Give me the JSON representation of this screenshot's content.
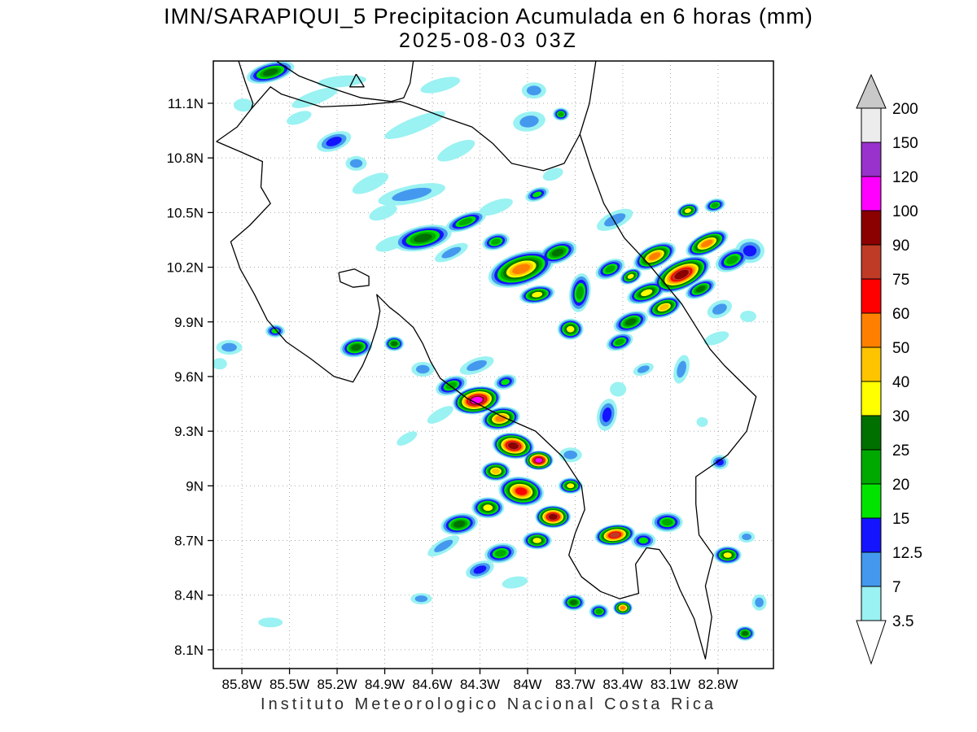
{
  "chart_data": {
    "type": "heatmap",
    "title": "IMN/SARAPIQUI_5 Precipitacion Acumulada en 6 horas (mm)",
    "subtitle": "2025-08-03 03Z",
    "footer": "Instituto Meteorologico Nacional Costa Rica",
    "units": "mm",
    "grid": true,
    "legend_position": "right",
    "lon_range": [
      -85.98,
      -82.451
    ],
    "lat_range": [
      7.997,
      11.332
    ],
    "x_ticks": [
      {
        "label": "85.8W",
        "lon": -85.8
      },
      {
        "label": "85.5W",
        "lon": -85.5
      },
      {
        "label": "85.2W",
        "lon": -85.2
      },
      {
        "label": "84.9W",
        "lon": -84.9
      },
      {
        "label": "84.6W",
        "lon": -84.6
      },
      {
        "label": "84.3W",
        "lon": -84.3
      },
      {
        "label": "84W",
        "lon": -84.0
      },
      {
        "label": "83.7W",
        "lon": -83.7
      },
      {
        "label": "83.4W",
        "lon": -83.4
      },
      {
        "label": "83.1W",
        "lon": -83.1
      },
      {
        "label": "82.8W",
        "lon": -82.8
      }
    ],
    "y_ticks": [
      {
        "label": "11.1N",
        "lat": 11.1
      },
      {
        "label": "10.8N",
        "lat": 10.8
      },
      {
        "label": "10.5N",
        "lat": 10.5
      },
      {
        "label": "10.2N",
        "lat": 10.2
      },
      {
        "label": "9.9N",
        "lat": 9.9
      },
      {
        "label": "9.6N",
        "lat": 9.6
      },
      {
        "label": "9.3N",
        "lat": 9.3
      },
      {
        "label": "9N",
        "lat": 9.0
      },
      {
        "label": "8.7N",
        "lat": 8.7
      },
      {
        "label": "8.4N",
        "lat": 8.4
      },
      {
        "label": "8.1N",
        "lat": 8.1
      }
    ],
    "colorbar": {
      "levels": [
        3.5,
        7,
        12.5,
        15,
        20,
        25,
        30,
        40,
        50,
        60,
        75,
        90,
        100,
        120,
        150,
        200
      ],
      "band_colors": [
        "#9af2f2",
        "#4499ee",
        "#1414ff",
        "#00e400",
        "#00a900",
        "#007000",
        "#ffff00",
        "#ffc400",
        "#ff8000",
        "#ff0000",
        "#bf3b26",
        "#8b0000",
        "#ff00ff",
        "#9932cd",
        "#ececec"
      ],
      "over_color": "#c9c9c9",
      "under_color": "#ffffff"
    },
    "cells": [
      [
        -85.62,
        11.27,
        28,
        30,
        12,
        -15
      ],
      [
        -85.34,
        11.13,
        3.5,
        30,
        8,
        -20
      ],
      [
        -85.79,
        11.09,
        3.5,
        12,
        8,
        0
      ],
      [
        -85.17,
        11.22,
        3.5,
        30,
        7,
        -5
      ],
      [
        -84.55,
        11.2,
        3.5,
        25,
        8,
        -15
      ],
      [
        -83.96,
        11.17,
        7,
        15,
        10,
        0
      ],
      [
        -83.99,
        11.0,
        8,
        20,
        12,
        -10
      ],
      [
        -83.79,
        11.04,
        20,
        10,
        8,
        0
      ],
      [
        -85.44,
        11.02,
        3.5,
        16,
        7,
        -20
      ],
      [
        -84.71,
        10.98,
        3.5,
        40,
        9,
        -22
      ],
      [
        -84.45,
        10.84,
        3.5,
        25,
        9,
        -25
      ],
      [
        -85.22,
        10.89,
        14,
        22,
        11,
        -20
      ],
      [
        -85.08,
        10.77,
        8,
        13,
        9,
        0
      ],
      [
        -84.99,
        10.66,
        3.5,
        24,
        9,
        -25
      ],
      [
        -84.73,
        10.6,
        8,
        42,
        11,
        -12
      ],
      [
        -84.91,
        10.5,
        3.5,
        18,
        8,
        -20
      ],
      [
        -84.2,
        10.53,
        3.5,
        22,
        8,
        -20
      ],
      [
        -83.94,
        10.6,
        15,
        15,
        8,
        -20
      ],
      [
        -83.84,
        10.71,
        3.5,
        13,
        7,
        -20
      ],
      [
        -84.66,
        10.36,
        28,
        36,
        15,
        -12
      ],
      [
        -84.86,
        10.33,
        3.5,
        20,
        8,
        -20
      ],
      [
        -84.48,
        10.28,
        7,
        22,
        8,
        -25
      ],
      [
        -84.39,
        10.45,
        20,
        26,
        10,
        -20
      ],
      [
        -84.2,
        10.34,
        20,
        17,
        10,
        -15
      ],
      [
        -84.04,
        10.19,
        55,
        42,
        20,
        -18
      ],
      [
        -83.81,
        10.28,
        25,
        24,
        13,
        -20
      ],
      [
        -83.94,
        10.05,
        35,
        22,
        11,
        -10
      ],
      [
        -83.67,
        10.06,
        20,
        13,
        24,
        8
      ],
      [
        -83.73,
        9.86,
        35,
        16,
        13,
        0
      ],
      [
        -83.45,
        10.46,
        7,
        24,
        10,
        -25
      ],
      [
        -82.99,
        10.51,
        35,
        14,
        9,
        -15
      ],
      [
        -82.82,
        10.54,
        20,
        13,
        8,
        -15
      ],
      [
        -83.48,
        10.19,
        20,
        19,
        11,
        -25
      ],
      [
        -83.35,
        10.15,
        35,
        14,
        9,
        -25
      ],
      [
        -83.2,
        10.26,
        50,
        28,
        14,
        -25
      ],
      [
        -83.03,
        10.16,
        95,
        38,
        18,
        -25
      ],
      [
        -82.87,
        10.33,
        55,
        28,
        13,
        -25
      ],
      [
        -82.71,
        10.24,
        20,
        22,
        13,
        -25
      ],
      [
        -82.6,
        10.29,
        14,
        18,
        15,
        0
      ],
      [
        -83.25,
        10.06,
        35,
        25,
        12,
        -20
      ],
      [
        -83.14,
        9.98,
        45,
        22,
        12,
        -20
      ],
      [
        -83.35,
        9.9,
        25,
        22,
        12,
        -20
      ],
      [
        -83.42,
        9.79,
        20,
        17,
        10,
        -20
      ],
      [
        -82.91,
        10.08,
        25,
        20,
        10,
        -25
      ],
      [
        -82.79,
        9.97,
        8,
        16,
        10,
        -25
      ],
      [
        -82.81,
        9.81,
        3.5,
        16,
        7,
        -20
      ],
      [
        -82.61,
        9.93,
        3.5,
        10,
        7,
        0
      ],
      [
        -85.88,
        9.76,
        7,
        16,
        9,
        0
      ],
      [
        -85.94,
        9.67,
        3.5,
        9,
        7,
        0
      ],
      [
        -85.59,
        9.85,
        15,
        12,
        8,
        0
      ],
      [
        -85.08,
        9.76,
        25,
        20,
        12,
        -10
      ],
      [
        -84.84,
        9.78,
        25,
        12,
        9,
        0
      ],
      [
        -84.66,
        9.64,
        7,
        14,
        9,
        0
      ],
      [
        -84.32,
        9.66,
        7,
        22,
        9,
        -20
      ],
      [
        -84.14,
        9.57,
        15,
        14,
        9,
        -15
      ],
      [
        -84.48,
        9.55,
        20,
        20,
        11,
        -20
      ],
      [
        -84.32,
        9.47,
        110,
        30,
        17,
        -10
      ],
      [
        -84.17,
        9.37,
        55,
        24,
        14,
        -10
      ],
      [
        -84.09,
        9.22,
        95,
        26,
        16,
        8
      ],
      [
        -83.93,
        9.14,
        105,
        18,
        12,
        0
      ],
      [
        -84.2,
        9.08,
        45,
        18,
        12,
        0
      ],
      [
        -84.04,
        8.97,
        65,
        28,
        18,
        8
      ],
      [
        -84.25,
        8.88,
        35,
        20,
        13,
        0
      ],
      [
        -84.43,
        8.79,
        25,
        23,
        13,
        -10
      ],
      [
        -83.84,
        8.83,
        95,
        22,
        14,
        0
      ],
      [
        -83.73,
        9.0,
        35,
        15,
        10,
        0
      ],
      [
        -83.94,
        8.7,
        35,
        18,
        11,
        0
      ],
      [
        -84.17,
        8.63,
        20,
        20,
        12,
        -10
      ],
      [
        -84.3,
        8.54,
        14,
        18,
        10,
        -20
      ],
      [
        -84.53,
        8.67,
        7,
        22,
        8,
        -30
      ],
      [
        -84.08,
        8.47,
        3.5,
        16,
        7,
        -10
      ],
      [
        -83.45,
        8.73,
        80,
        25,
        13,
        -8
      ],
      [
        -83.27,
        8.7,
        15,
        15,
        10,
        0
      ],
      [
        -83.12,
        8.8,
        20,
        19,
        12,
        0
      ],
      [
        -82.74,
        8.62,
        35,
        17,
        11,
        0
      ],
      [
        -82.62,
        8.72,
        7,
        10,
        7,
        0
      ],
      [
        -83.71,
        8.36,
        25,
        14,
        10,
        0
      ],
      [
        -83.55,
        8.31,
        20,
        12,
        9,
        0
      ],
      [
        -83.4,
        8.33,
        55,
        12,
        9,
        0
      ],
      [
        -84.67,
        8.38,
        7,
        13,
        7,
        0
      ],
      [
        -85.62,
        8.25,
        3.5,
        15,
        6,
        0
      ],
      [
        -82.63,
        8.19,
        25,
        12,
        9,
        0
      ],
      [
        -82.54,
        8.36,
        7,
        9,
        10,
        0
      ],
      [
        -83.5,
        9.39,
        13,
        12,
        20,
        12
      ],
      [
        -83.43,
        9.53,
        3.5,
        10,
        9,
        0
      ],
      [
        -83.27,
        9.64,
        7,
        13,
        7,
        -20
      ],
      [
        -83.03,
        9.64,
        7,
        9,
        18,
        15
      ],
      [
        -82.79,
        9.13,
        13,
        11,
        9,
        0
      ],
      [
        -82.9,
        9.35,
        3.5,
        7,
        6,
        0
      ],
      [
        -84.55,
        9.39,
        3.5,
        18,
        7,
        -30
      ],
      [
        -84.76,
        9.26,
        3.5,
        14,
        6,
        -30
      ],
      [
        -83.73,
        9.17,
        7,
        14,
        9,
        0
      ]
    ],
    "coastlines": [
      [
        [
          -85.74,
          11.07
        ],
        [
          -85.83,
          10.97
        ],
        [
          -85.96,
          10.89
        ],
        [
          -85.8,
          10.83
        ],
        [
          -85.67,
          10.78
        ],
        [
          -85.68,
          10.64
        ],
        [
          -85.62,
          10.55
        ],
        [
          -85.75,
          10.43
        ],
        [
          -85.87,
          10.34
        ],
        [
          -85.81,
          10.19
        ],
        [
          -85.72,
          10.05
        ],
        [
          -85.64,
          9.91
        ],
        [
          -85.52,
          9.79
        ],
        [
          -85.37,
          9.7
        ],
        [
          -85.22,
          9.6
        ],
        [
          -85.1,
          9.57
        ],
        [
          -85.04,
          9.66
        ],
        [
          -84.99,
          9.76
        ],
        [
          -84.95,
          9.87
        ],
        [
          -84.93,
          9.96
        ],
        [
          -84.95,
          10.05
        ],
        [
          -84.87,
          9.98
        ],
        [
          -84.81,
          9.94
        ],
        [
          -84.72,
          9.87
        ],
        [
          -84.66,
          9.78
        ],
        [
          -84.61,
          9.68
        ],
        [
          -84.55,
          9.59
        ],
        [
          -84.38,
          9.48
        ],
        [
          -84.16,
          9.38
        ],
        [
          -83.95,
          9.3
        ],
        [
          -83.78,
          9.16
        ],
        [
          -83.66,
          9.0
        ],
        [
          -83.64,
          8.87
        ],
        [
          -83.7,
          8.74
        ],
        [
          -83.74,
          8.62
        ],
        [
          -83.66,
          8.5
        ],
        [
          -83.54,
          8.42
        ],
        [
          -83.42,
          8.38
        ],
        [
          -83.3,
          8.41
        ],
        [
          -83.32,
          8.57
        ],
        [
          -83.25,
          8.66
        ],
        [
          -83.17,
          8.65
        ],
        [
          -83.1,
          8.56
        ],
        [
          -83.04,
          8.43
        ],
        [
          -82.95,
          8.27
        ],
        [
          -82.88,
          8.05
        ],
        [
          -82.84,
          8.28
        ],
        [
          -82.88,
          8.45
        ],
        [
          -82.83,
          8.62
        ],
        [
          -82.92,
          8.73
        ],
        [
          -82.94,
          8.9
        ],
        [
          -82.94,
          9.05
        ],
        [
          -82.74,
          9.17
        ],
        [
          -82.62,
          9.3
        ],
        [
          -82.56,
          9.49
        ],
        [
          -82.76,
          9.66
        ],
        [
          -82.85,
          9.75
        ],
        [
          -83.03,
          10.0
        ],
        [
          -83.24,
          10.22
        ],
        [
          -83.39,
          10.36
        ],
        [
          -83.52,
          10.55
        ],
        [
          -83.6,
          10.74
        ],
        [
          -83.67,
          10.93
        ],
        [
          -83.77,
          10.77
        ],
        [
          -83.9,
          10.73
        ],
        [
          -84.1,
          10.77
        ],
        [
          -84.22,
          10.88
        ],
        [
          -84.35,
          10.97
        ],
        [
          -84.55,
          11.03
        ],
        [
          -84.7,
          11.08
        ],
        [
          -84.8,
          11.11
        ],
        [
          -85.05,
          11.09
        ],
        [
          -85.3,
          11.08
        ],
        [
          -85.55,
          11.15
        ],
        [
          -85.62,
          11.19
        ],
        [
          -85.74,
          11.07
        ]
      ],
      [
        [
          -85.82,
          11.33
        ],
        [
          -85.78,
          11.22
        ],
        [
          -85.73,
          11.1
        ],
        [
          -85.74,
          11.07
        ]
      ],
      [
        [
          -85.58,
          11.33
        ],
        [
          -85.44,
          11.25
        ],
        [
          -85.26,
          11.19
        ],
        [
          -85.05,
          11.13
        ],
        [
          -84.86,
          11.11
        ],
        [
          -84.78,
          11.13
        ],
        [
          -84.74,
          11.21
        ],
        [
          -84.72,
          11.33
        ]
      ],
      [
        [
          -83.67,
          10.93
        ],
        [
          -83.61,
          11.1
        ],
        [
          -83.57,
          11.33
        ]
      ],
      [
        [
          -85.08,
          11.26
        ],
        [
          -85.12,
          11.19
        ],
        [
          -85.03,
          11.19
        ],
        [
          -85.08,
          11.26
        ]
      ],
      [
        [
          -85.19,
          10.17
        ],
        [
          -85.09,
          10.19
        ],
        [
          -85.0,
          10.15
        ],
        [
          -85.0,
          10.1
        ],
        [
          -85.1,
          10.09
        ],
        [
          -85.18,
          10.12
        ],
        [
          -85.19,
          10.17
        ]
      ]
    ]
  }
}
